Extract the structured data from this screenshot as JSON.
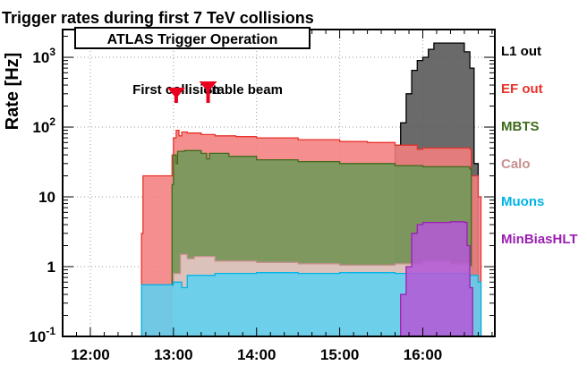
{
  "chart_data": {
    "type": "area",
    "title": "Trigger rates during first 7 TeV collisions",
    "subtitle": "ATLAS Trigger Operation",
    "ylabel": "Rate [Hz]",
    "xlabel": "",
    "y_scale": "log",
    "ylim": [
      0.1,
      2500
    ],
    "xlim": [
      "11:40",
      "16:52"
    ],
    "x_ticks": [
      "12:00",
      "13:00",
      "14:00",
      "15:00",
      "16:00"
    ],
    "y_ticks": [
      {
        "value": 0.1,
        "base": "10",
        "exp": "-1"
      },
      {
        "value": 1,
        "label": "1"
      },
      {
        "value": 10,
        "label": "10"
      },
      {
        "value": 100,
        "base": "10",
        "exp": "2"
      },
      {
        "value": 1000,
        "base": "10",
        "exp": "3"
      }
    ],
    "grid": true,
    "legend": "right",
    "annotations": [
      {
        "text": "First collision",
        "time": "13:02",
        "arrow_top": 115,
        "arrow_bottom": 82
      },
      {
        "text": "Stable beam",
        "time": "13:25",
        "arrow_top": 115,
        "arrow_bottom": 75
      }
    ],
    "series": [
      {
        "name": "L1 out",
        "color": "#555555",
        "label_color": "#000000",
        "points": [
          [
            "15:40",
            0.1
          ],
          [
            "15:40",
            55
          ],
          [
            "15:44",
            115
          ],
          [
            "15:48",
            300
          ],
          [
            "15:52",
            650
          ],
          [
            "15:56",
            900
          ],
          [
            "16:00",
            1000
          ],
          [
            "16:04",
            1300
          ],
          [
            "16:08",
            1600
          ],
          [
            "16:26",
            1600
          ],
          [
            "16:30",
            1200
          ],
          [
            "16:34",
            700
          ],
          [
            "16:37",
            30
          ],
          [
            "16:40",
            0.1
          ]
        ]
      },
      {
        "name": "EF out",
        "color": "#f47f7f",
        "label_color": "#e8322a",
        "points": [
          [
            "12:36",
            0.1
          ],
          [
            "12:37",
            3
          ],
          [
            "12:38",
            20
          ],
          [
            "12:58",
            20
          ],
          [
            "12:59",
            40
          ],
          [
            "13:00",
            70
          ],
          [
            "13:02",
            90
          ],
          [
            "13:04",
            75
          ],
          [
            "13:06",
            85
          ],
          [
            "13:10",
            82
          ],
          [
            "13:20",
            78
          ],
          [
            "13:30",
            75
          ],
          [
            "13:45",
            73
          ],
          [
            "14:00",
            70
          ],
          [
            "14:30",
            66
          ],
          [
            "15:00",
            62
          ],
          [
            "15:20",
            60
          ],
          [
            "15:40",
            55
          ],
          [
            "15:56",
            48
          ],
          [
            "16:00",
            50
          ],
          [
            "16:20",
            50
          ],
          [
            "16:34",
            48
          ],
          [
            "16:35",
            20
          ],
          [
            "16:40",
            10
          ],
          [
            "16:42",
            0.1
          ]
        ]
      },
      {
        "name": "MBTS",
        "color": "#6e9a5a",
        "label_color": "#3f6b1a",
        "points": [
          [
            "12:59",
            0.1
          ],
          [
            "12:59",
            15
          ],
          [
            "13:00",
            40
          ],
          [
            "13:02",
            30
          ],
          [
            "13:03",
            45
          ],
          [
            "13:08",
            46
          ],
          [
            "13:20",
            42
          ],
          [
            "13:24",
            35
          ],
          [
            "13:26",
            42
          ],
          [
            "13:40",
            38
          ],
          [
            "14:00",
            34
          ],
          [
            "14:30",
            32
          ],
          [
            "15:00",
            30
          ],
          [
            "15:40",
            28
          ],
          [
            "16:00",
            27
          ],
          [
            "16:34",
            25
          ],
          [
            "16:35",
            0.1
          ]
        ]
      },
      {
        "name": "Calo",
        "color": "#e8c8c8",
        "label_color": "#c89090",
        "points": [
          [
            "12:59",
            0.1
          ],
          [
            "12:59",
            0.5
          ],
          [
            "13:00",
            0.8
          ],
          [
            "13:05",
            1.5
          ],
          [
            "13:10",
            1.3
          ],
          [
            "13:15",
            1.4
          ],
          [
            "13:30",
            1.2
          ],
          [
            "14:00",
            1.15
          ],
          [
            "14:30",
            1.1
          ],
          [
            "15:00",
            1.05
          ],
          [
            "15:40",
            1.1
          ],
          [
            "16:00",
            1.2
          ],
          [
            "16:20",
            1.1
          ],
          [
            "16:34",
            1.0
          ],
          [
            "16:35",
            0.1
          ]
        ]
      },
      {
        "name": "Muons",
        "color": "#5fd0f0",
        "label_color": "#00b4e6",
        "points": [
          [
            "12:36",
            0.1
          ],
          [
            "12:37",
            0.55
          ],
          [
            "12:50",
            0.55
          ],
          [
            "13:00",
            0.6
          ],
          [
            "13:06",
            0.5
          ],
          [
            "13:10",
            0.75
          ],
          [
            "13:30",
            0.8
          ],
          [
            "14:00",
            0.82
          ],
          [
            "14:30",
            0.8
          ],
          [
            "15:00",
            0.82
          ],
          [
            "15:40",
            0.8
          ],
          [
            "16:00",
            0.8
          ],
          [
            "16:20",
            0.8
          ],
          [
            "16:34",
            0.75
          ],
          [
            "16:40",
            0.6
          ],
          [
            "16:42",
            0.1
          ]
        ]
      },
      {
        "name": "MinBiasHLT",
        "color": "#b45ad6",
        "label_color": "#9a1fb0",
        "points": [
          [
            "15:40",
            0.1
          ],
          [
            "15:44",
            0.4
          ],
          [
            "15:48",
            1.0
          ],
          [
            "15:52",
            3.0
          ],
          [
            "15:56",
            4.0
          ],
          [
            "16:00",
            4.3
          ],
          [
            "16:20",
            4.4
          ],
          [
            "16:30",
            4.3
          ],
          [
            "16:32",
            2.0
          ],
          [
            "16:34",
            0.5
          ],
          [
            "16:36",
            0.1
          ]
        ]
      }
    ]
  }
}
